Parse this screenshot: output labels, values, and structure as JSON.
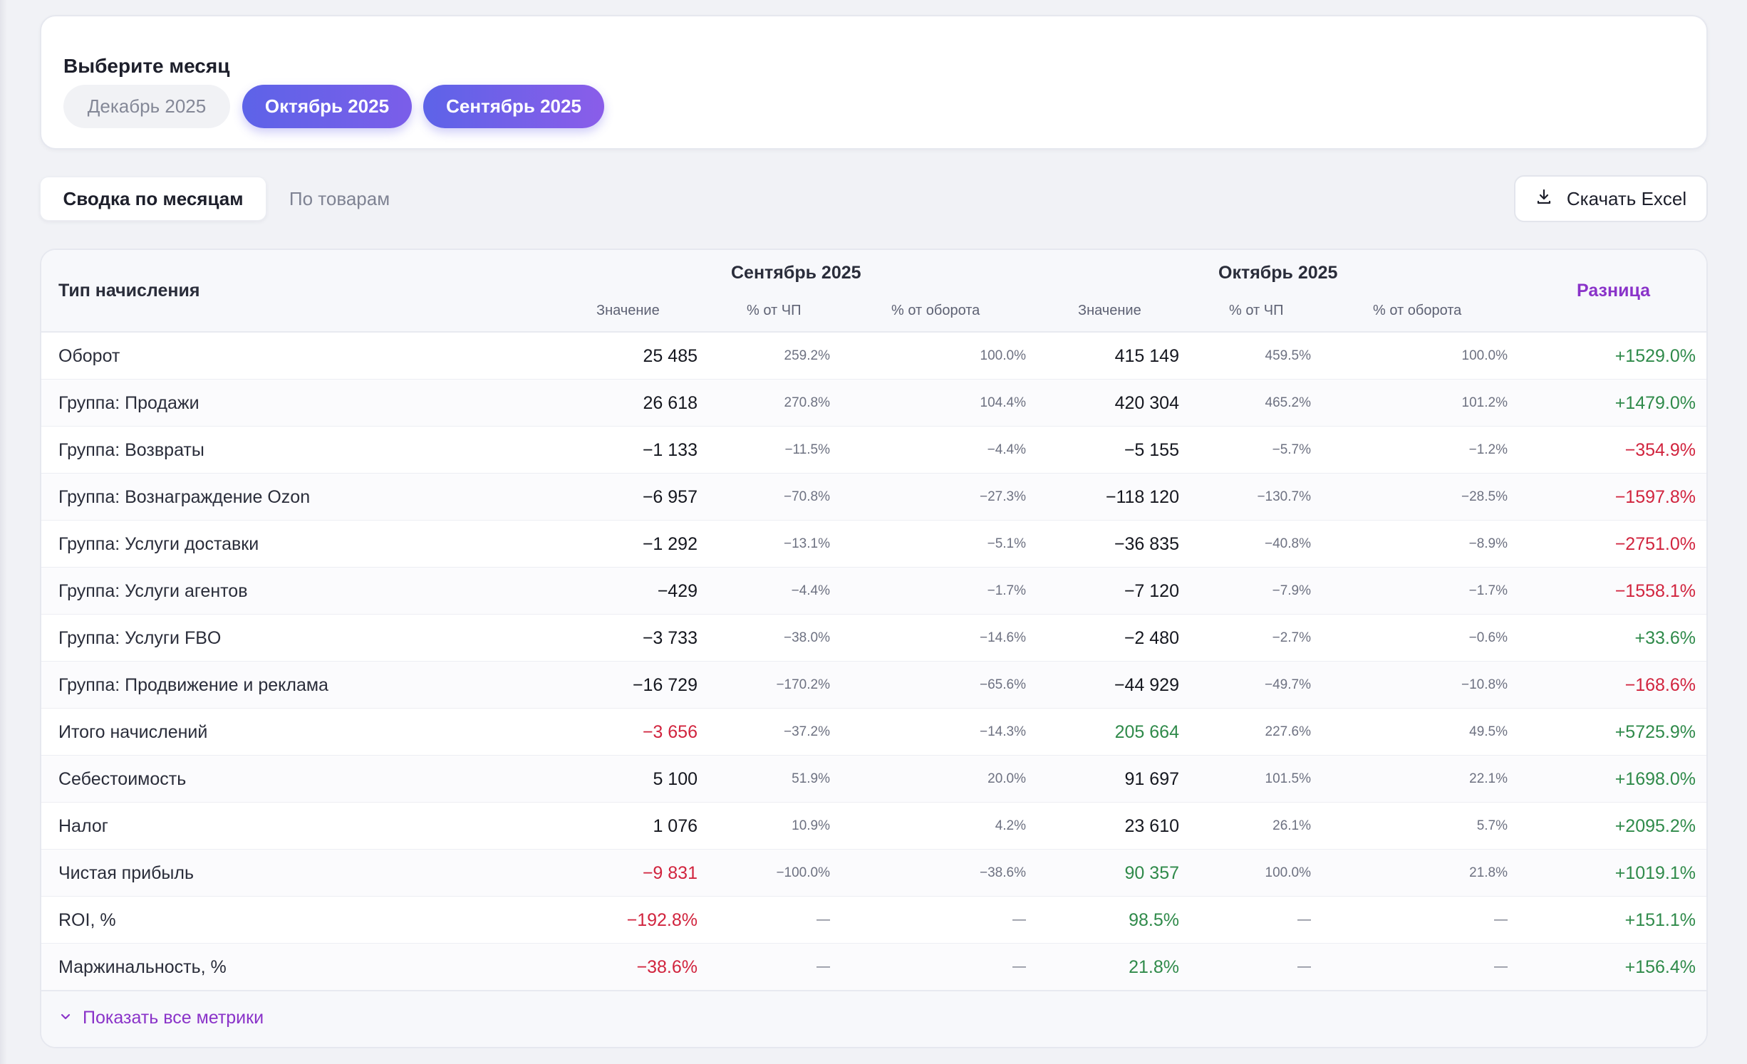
{
  "month_picker": {
    "title": "Выберите месяц",
    "months": [
      {
        "label": "Декабрь 2025",
        "selected": false
      },
      {
        "label": "Октябрь 2025",
        "selected": true
      },
      {
        "label": "Сентябрь 2025",
        "selected": true
      }
    ]
  },
  "tabs": [
    {
      "label": "Сводка по месяцам",
      "active": true
    },
    {
      "label": "По товарам",
      "active": false
    }
  ],
  "excel_button": {
    "label": "Скачать Excel",
    "icon": "download-icon"
  },
  "table": {
    "type_header": "Тип начисления",
    "periods": [
      {
        "name": "Сентябрь 2025",
        "columns": [
          "Значение",
          "% от ЧП",
          "% от оборота"
        ]
      },
      {
        "name": "Октябрь 2025",
        "columns": [
          "Значение",
          "% от ЧП",
          "% от оборота"
        ]
      }
    ],
    "diff_header": "Разница",
    "rows": [
      {
        "name": "Оборот",
        "v1": "25 485",
        "p1": "259.2%",
        "o1": "100.0%",
        "v2": "415 149",
        "p2": "459.5%",
        "o2": "100.0%",
        "diff": "+1529.0%",
        "v1_status": "",
        "v2_status": "",
        "diff_status": "pos"
      },
      {
        "name": "Группа: Продажи",
        "v1": "26 618",
        "p1": "270.8%",
        "o1": "104.4%",
        "v2": "420 304",
        "p2": "465.2%",
        "o2": "101.2%",
        "diff": "+1479.0%",
        "v1_status": "",
        "v2_status": "",
        "diff_status": "pos"
      },
      {
        "name": "Группа: Возвраты",
        "v1": "−1 133",
        "p1": "−11.5%",
        "o1": "−4.4%",
        "v2": "−5 155",
        "p2": "−5.7%",
        "o2": "−1.2%",
        "diff": "−354.9%",
        "v1_status": "",
        "v2_status": "",
        "diff_status": "neg"
      },
      {
        "name": "Группа: Вознаграждение Ozon",
        "v1": "−6 957",
        "p1": "−70.8%",
        "o1": "−27.3%",
        "v2": "−118 120",
        "p2": "−130.7%",
        "o2": "−28.5%",
        "diff": "−1597.8%",
        "v1_status": "",
        "v2_status": "",
        "diff_status": "neg"
      },
      {
        "name": "Группа: Услуги доставки",
        "v1": "−1 292",
        "p1": "−13.1%",
        "o1": "−5.1%",
        "v2": "−36 835",
        "p2": "−40.8%",
        "o2": "−8.9%",
        "diff": "−2751.0%",
        "v1_status": "",
        "v2_status": "",
        "diff_status": "neg"
      },
      {
        "name": "Группа: Услуги агентов",
        "v1": "−429",
        "p1": "−4.4%",
        "o1": "−1.7%",
        "v2": "−7 120",
        "p2": "−7.9%",
        "o2": "−1.7%",
        "diff": "−1558.1%",
        "v1_status": "",
        "v2_status": "",
        "diff_status": "neg"
      },
      {
        "name": "Группа: Услуги FBO",
        "v1": "−3 733",
        "p1": "−38.0%",
        "o1": "−14.6%",
        "v2": "−2 480",
        "p2": "−2.7%",
        "o2": "−0.6%",
        "diff": "+33.6%",
        "v1_status": "",
        "v2_status": "",
        "diff_status": "pos"
      },
      {
        "name": "Группа: Продвижение и реклама",
        "v1": "−16 729",
        "p1": "−170.2%",
        "o1": "−65.6%",
        "v2": "−44 929",
        "p2": "−49.7%",
        "o2": "−10.8%",
        "diff": "−168.6%",
        "v1_status": "",
        "v2_status": "",
        "diff_status": "neg"
      },
      {
        "name": "Итого начислений",
        "v1": "−3 656",
        "p1": "−37.2%",
        "o1": "−14.3%",
        "v2": "205 664",
        "p2": "227.6%",
        "o2": "49.5%",
        "diff": "+5725.9%",
        "v1_status": "neg",
        "v2_status": "pos",
        "diff_status": "pos"
      },
      {
        "name": "Себестоимость",
        "v1": "5 100",
        "p1": "51.9%",
        "o1": "20.0%",
        "v2": "91 697",
        "p2": "101.5%",
        "o2": "22.1%",
        "diff": "+1698.0%",
        "v1_status": "",
        "v2_status": "",
        "diff_status": "pos"
      },
      {
        "name": "Налог",
        "v1": "1 076",
        "p1": "10.9%",
        "o1": "4.2%",
        "v2": "23 610",
        "p2": "26.1%",
        "o2": "5.7%",
        "diff": "+2095.2%",
        "v1_status": "",
        "v2_status": "",
        "diff_status": "pos"
      },
      {
        "name": "Чистая прибыль",
        "v1": "−9 831",
        "p1": "−100.0%",
        "o1": "−38.6%",
        "v2": "90 357",
        "p2": "100.0%",
        "o2": "21.8%",
        "diff": "+1019.1%",
        "v1_status": "neg",
        "v2_status": "pos",
        "diff_status": "pos"
      },
      {
        "name": "ROI, %",
        "v1": "−192.8%",
        "p1": "—",
        "o1": "—",
        "v2": "98.5%",
        "p2": "—",
        "o2": "—",
        "diff": "+151.1%",
        "v1_status": "neg",
        "v2_status": "pos",
        "diff_status": "pos"
      },
      {
        "name": "Маржинальность, %",
        "v1": "−38.6%",
        "p1": "—",
        "o1": "—",
        "v2": "21.8%",
        "p2": "—",
        "o2": "—",
        "diff": "+156.4%",
        "v1_status": "neg",
        "v2_status": "pos",
        "diff_status": "pos"
      }
    ],
    "show_all_label": "Показать все метрики"
  },
  "colors": {
    "accent": "#6c5ce7",
    "positive": "#2f8a4a",
    "negative": "#d1243e",
    "diff_header": "#8a33c9"
  }
}
